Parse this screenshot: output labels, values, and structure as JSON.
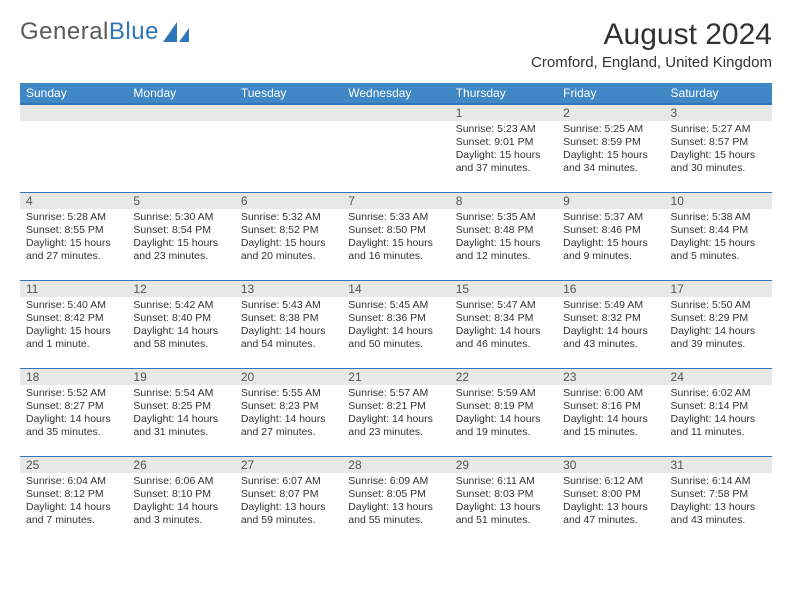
{
  "brand": {
    "part1": "General",
    "part2": "Blue"
  },
  "title": "August 2024",
  "location": "Cromford, England, United Kingdom",
  "colors": {
    "header_bg": "#3f88c5",
    "header_border": "#2f77b8",
    "daynum_bg": "#e8e8e8",
    "text": "#333333",
    "background": "#ffffff"
  },
  "weekdays": [
    "Sunday",
    "Monday",
    "Tuesday",
    "Wednesday",
    "Thursday",
    "Friday",
    "Saturday"
  ],
  "weeks": [
    [
      null,
      null,
      null,
      null,
      {
        "n": "1",
        "sr": "5:23 AM",
        "ss": "9:01 PM",
        "dl": "15 hours and 37 minutes."
      },
      {
        "n": "2",
        "sr": "5:25 AM",
        "ss": "8:59 PM",
        "dl": "15 hours and 34 minutes."
      },
      {
        "n": "3",
        "sr": "5:27 AM",
        "ss": "8:57 PM",
        "dl": "15 hours and 30 minutes."
      }
    ],
    [
      {
        "n": "4",
        "sr": "5:28 AM",
        "ss": "8:55 PM",
        "dl": "15 hours and 27 minutes."
      },
      {
        "n": "5",
        "sr": "5:30 AM",
        "ss": "8:54 PM",
        "dl": "15 hours and 23 minutes."
      },
      {
        "n": "6",
        "sr": "5:32 AM",
        "ss": "8:52 PM",
        "dl": "15 hours and 20 minutes."
      },
      {
        "n": "7",
        "sr": "5:33 AM",
        "ss": "8:50 PM",
        "dl": "15 hours and 16 minutes."
      },
      {
        "n": "8",
        "sr": "5:35 AM",
        "ss": "8:48 PM",
        "dl": "15 hours and 12 minutes."
      },
      {
        "n": "9",
        "sr": "5:37 AM",
        "ss": "8:46 PM",
        "dl": "15 hours and 9 minutes."
      },
      {
        "n": "10",
        "sr": "5:38 AM",
        "ss": "8:44 PM",
        "dl": "15 hours and 5 minutes."
      }
    ],
    [
      {
        "n": "11",
        "sr": "5:40 AM",
        "ss": "8:42 PM",
        "dl": "15 hours and 1 minute."
      },
      {
        "n": "12",
        "sr": "5:42 AM",
        "ss": "8:40 PM",
        "dl": "14 hours and 58 minutes."
      },
      {
        "n": "13",
        "sr": "5:43 AM",
        "ss": "8:38 PM",
        "dl": "14 hours and 54 minutes."
      },
      {
        "n": "14",
        "sr": "5:45 AM",
        "ss": "8:36 PM",
        "dl": "14 hours and 50 minutes."
      },
      {
        "n": "15",
        "sr": "5:47 AM",
        "ss": "8:34 PM",
        "dl": "14 hours and 46 minutes."
      },
      {
        "n": "16",
        "sr": "5:49 AM",
        "ss": "8:32 PM",
        "dl": "14 hours and 43 minutes."
      },
      {
        "n": "17",
        "sr": "5:50 AM",
        "ss": "8:29 PM",
        "dl": "14 hours and 39 minutes."
      }
    ],
    [
      {
        "n": "18",
        "sr": "5:52 AM",
        "ss": "8:27 PM",
        "dl": "14 hours and 35 minutes."
      },
      {
        "n": "19",
        "sr": "5:54 AM",
        "ss": "8:25 PM",
        "dl": "14 hours and 31 minutes."
      },
      {
        "n": "20",
        "sr": "5:55 AM",
        "ss": "8:23 PM",
        "dl": "14 hours and 27 minutes."
      },
      {
        "n": "21",
        "sr": "5:57 AM",
        "ss": "8:21 PM",
        "dl": "14 hours and 23 minutes."
      },
      {
        "n": "22",
        "sr": "5:59 AM",
        "ss": "8:19 PM",
        "dl": "14 hours and 19 minutes."
      },
      {
        "n": "23",
        "sr": "6:00 AM",
        "ss": "8:16 PM",
        "dl": "14 hours and 15 minutes."
      },
      {
        "n": "24",
        "sr": "6:02 AM",
        "ss": "8:14 PM",
        "dl": "14 hours and 11 minutes."
      }
    ],
    [
      {
        "n": "25",
        "sr": "6:04 AM",
        "ss": "8:12 PM",
        "dl": "14 hours and 7 minutes."
      },
      {
        "n": "26",
        "sr": "6:06 AM",
        "ss": "8:10 PM",
        "dl": "14 hours and 3 minutes."
      },
      {
        "n": "27",
        "sr": "6:07 AM",
        "ss": "8:07 PM",
        "dl": "13 hours and 59 minutes."
      },
      {
        "n": "28",
        "sr": "6:09 AM",
        "ss": "8:05 PM",
        "dl": "13 hours and 55 minutes."
      },
      {
        "n": "29",
        "sr": "6:11 AM",
        "ss": "8:03 PM",
        "dl": "13 hours and 51 minutes."
      },
      {
        "n": "30",
        "sr": "6:12 AM",
        "ss": "8:00 PM",
        "dl": "13 hours and 47 minutes."
      },
      {
        "n": "31",
        "sr": "6:14 AM",
        "ss": "7:58 PM",
        "dl": "13 hours and 43 minutes."
      }
    ]
  ]
}
